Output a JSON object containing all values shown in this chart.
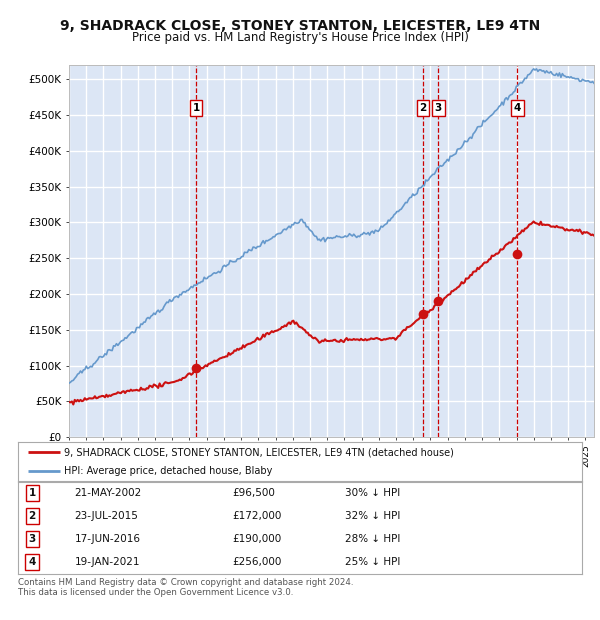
{
  "title": "9, SHADRACK CLOSE, STONEY STANTON, LEICESTER, LE9 4TN",
  "subtitle": "Price paid vs. HM Land Registry's House Price Index (HPI)",
  "title_fontsize": 10,
  "subtitle_fontsize": 8.5,
  "bg_color": "#dce6f5",
  "grid_color": "#ffffff",
  "hpi_color": "#6699cc",
  "price_color": "#cc1111",
  "transactions": [
    {
      "label": "1",
      "date": "21-MAY-2002",
      "year": 2002.38,
      "price": 96500,
      "pct": "30% ↓ HPI"
    },
    {
      "label": "2",
      "date": "23-JUL-2015",
      "year": 2015.55,
      "price": 172000,
      "pct": "32% ↓ HPI"
    },
    {
      "label": "3",
      "date": "17-JUN-2016",
      "year": 2016.46,
      "price": 190000,
      "pct": "28% ↓ HPI"
    },
    {
      "label": "4",
      "date": "19-JAN-2021",
      "year": 2021.05,
      "price": 256000,
      "pct": "25% ↓ HPI"
    }
  ],
  "legend_line1": "9, SHADRACK CLOSE, STONEY STANTON, LEICESTER, LE9 4TN (detached house)",
  "legend_line2": "HPI: Average price, detached house, Blaby",
  "footer1": "Contains HM Land Registry data © Crown copyright and database right 2024.",
  "footer2": "This data is licensed under the Open Government Licence v3.0.",
  "ylim": [
    0,
    520000
  ],
  "yticks": [
    0,
    50000,
    100000,
    150000,
    200000,
    250000,
    300000,
    350000,
    400000,
    450000,
    500000
  ],
  "ytick_labels": [
    "£0",
    "£50K",
    "£100K",
    "£150K",
    "£200K",
    "£250K",
    "£300K",
    "£350K",
    "£400K",
    "£450K",
    "£500K"
  ]
}
